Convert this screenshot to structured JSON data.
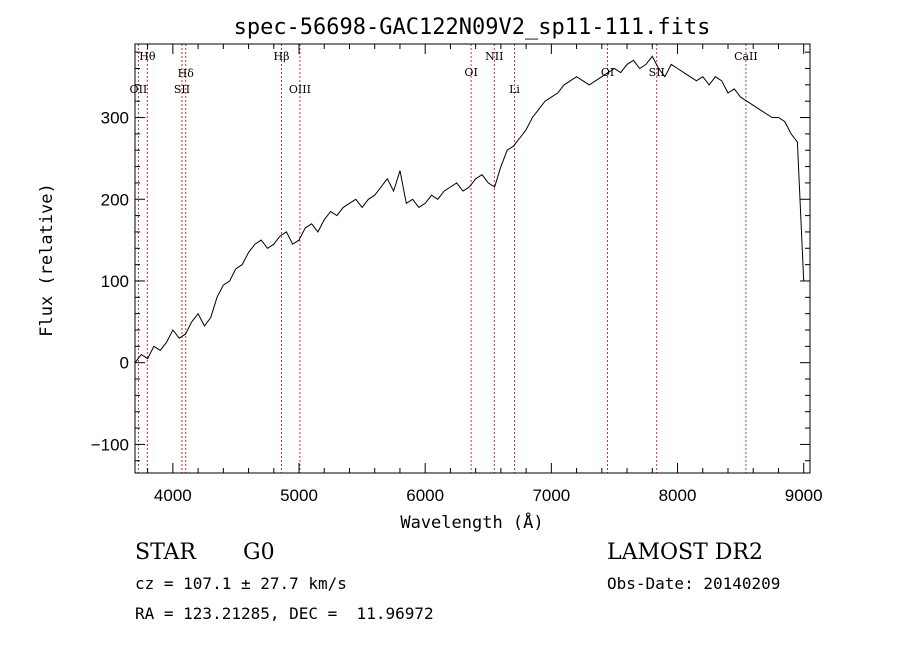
{
  "chart_data": {
    "type": "line",
    "title": "spec-56698-GAC122N09V2_sp11-111.fits",
    "xlabel": "Wavelength (Å)",
    "ylabel": "Flux (relative)",
    "xlim": [
      3700,
      9050
    ],
    "ylim": [
      -135,
      390
    ],
    "xticks": [
      4000,
      5000,
      6000,
      7000,
      8000,
      9000
    ],
    "yticks": [
      -100,
      0,
      100,
      200,
      300
    ],
    "grid": false,
    "series": [
      {
        "name": "flux",
        "x": [
          3700,
          3750,
          3800,
          3850,
          3900,
          3950,
          4000,
          4050,
          4100,
          4150,
          4200,
          4250,
          4300,
          4350,
          4400,
          4450,
          4500,
          4550,
          4600,
          4650,
          4700,
          4750,
          4800,
          4850,
          4900,
          4950,
          5000,
          5050,
          5100,
          5150,
          5200,
          5250,
          5300,
          5350,
          5400,
          5450,
          5500,
          5550,
          5600,
          5650,
          5700,
          5750,
          5800,
          5850,
          5900,
          5950,
          6000,
          6050,
          6100,
          6150,
          6200,
          6250,
          6300,
          6350,
          6400,
          6450,
          6500,
          6550,
          6600,
          6650,
          6700,
          6750,
          6800,
          6850,
          6900,
          6950,
          7000,
          7050,
          7100,
          7150,
          7200,
          7250,
          7300,
          7350,
          7400,
          7450,
          7500,
          7550,
          7600,
          7650,
          7700,
          7750,
          7800,
          7850,
          7900,
          7950,
          8000,
          8050,
          8100,
          8150,
          8200,
          8250,
          8300,
          8350,
          8400,
          8450,
          8500,
          8550,
          8600,
          8650,
          8700,
          8750,
          8800,
          8850,
          8900,
          8950,
          9000
        ],
        "values": [
          0,
          10,
          5,
          20,
          15,
          25,
          40,
          30,
          35,
          50,
          60,
          45,
          55,
          80,
          95,
          100,
          115,
          120,
          135,
          145,
          150,
          140,
          145,
          155,
          160,
          145,
          150,
          165,
          170,
          160,
          175,
          185,
          180,
          190,
          195,
          200,
          190,
          200,
          205,
          215,
          225,
          210,
          235,
          195,
          200,
          190,
          195,
          205,
          200,
          210,
          215,
          220,
          210,
          215,
          225,
          230,
          220,
          215,
          240,
          260,
          265,
          275,
          285,
          300,
          310,
          320,
          325,
          330,
          340,
          345,
          350,
          345,
          340,
          345,
          350,
          355,
          360,
          355,
          365,
          370,
          360,
          365,
          375,
          360,
          350,
          365,
          360,
          355,
          350,
          345,
          350,
          340,
          350,
          345,
          330,
          335,
          325,
          320,
          315,
          310,
          305,
          300,
          300,
          295,
          280,
          270,
          100
        ]
      }
    ],
    "line_markers": [
      {
        "label": "Hθ",
        "x": 3798
      },
      {
        "label": "OII",
        "x": 3727
      },
      {
        "label": "Hδ",
        "x": 4102
      },
      {
        "label": "SII",
        "x": 4072
      },
      {
        "label": "Hβ",
        "x": 4861
      },
      {
        "label": "OIII",
        "x": 5007
      },
      {
        "label": "OI",
        "x": 6364
      },
      {
        "label": "NII",
        "x": 6548
      },
      {
        "label": "Li",
        "x": 6708
      },
      {
        "label": "OI",
        "x": 7445
      },
      {
        "label": "SII",
        "x": 7835
      },
      {
        "label": "CaII",
        "x": 8542
      }
    ]
  },
  "info": {
    "class_label": "STAR",
    "subclass_label": "G0",
    "survey": "LAMOST DR2",
    "redshift_text": "cz = 107.1 ± 27.7 km/s",
    "obs_date_text": "Obs-Date: 20140209",
    "coords_text": "RA = 123.21285, DEC =  11.96972"
  }
}
